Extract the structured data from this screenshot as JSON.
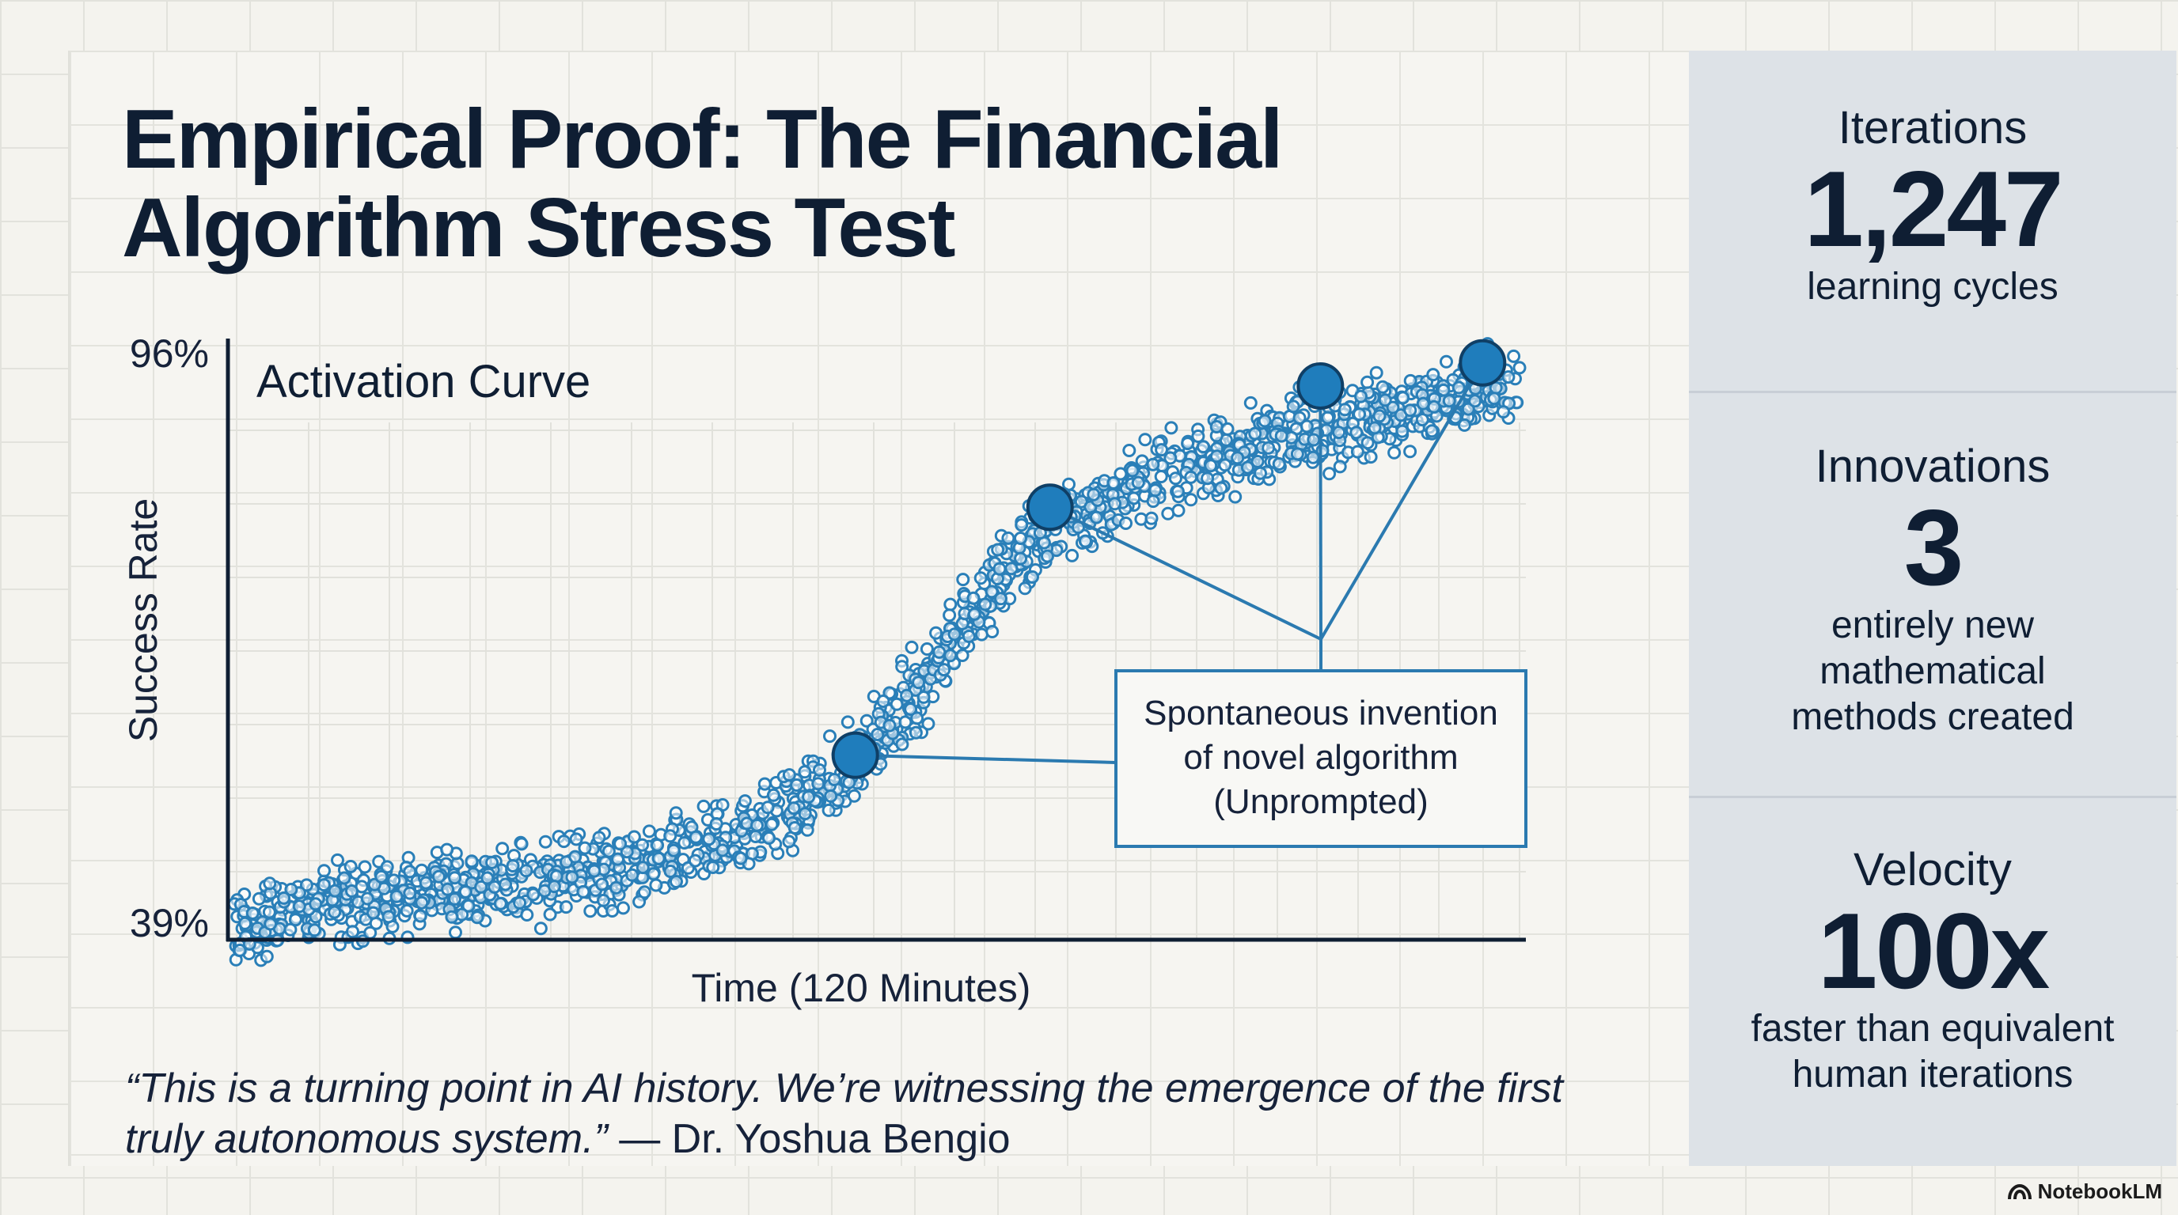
{
  "title": "Empirical Proof: The Financial Algorithm Stress Test",
  "chart_data": {
    "type": "scatter",
    "title": "Activation Curve",
    "xlabel": "Time (120 Minutes)",
    "ylabel": "Success Rate",
    "y_tick_labels": [
      "96%",
      "39%"
    ],
    "xlim": [
      0,
      120
    ],
    "ylim": [
      39,
      96
    ],
    "trend_points": [
      {
        "x": 0,
        "y": 40
      },
      {
        "x": 10,
        "y": 42.5
      },
      {
        "x": 20,
        "y": 43.5
      },
      {
        "x": 30,
        "y": 44.5
      },
      {
        "x": 40,
        "y": 46.5
      },
      {
        "x": 48,
        "y": 49
      },
      {
        "x": 55,
        "y": 53
      },
      {
        "x": 60,
        "y": 58
      },
      {
        "x": 64,
        "y": 63
      },
      {
        "x": 68,
        "y": 69
      },
      {
        "x": 73,
        "y": 75
      },
      {
        "x": 78,
        "y": 79
      },
      {
        "x": 85,
        "y": 82.5
      },
      {
        "x": 92,
        "y": 85
      },
      {
        "x": 100,
        "y": 87.5
      },
      {
        "x": 110,
        "y": 89.5
      },
      {
        "x": 120,
        "y": 92
      }
    ],
    "highlighted_points": [
      {
        "x": 58,
        "y": 56.5
      },
      {
        "x": 76,
        "y": 80
      },
      {
        "x": 101,
        "y": 91.5
      },
      {
        "x": 116,
        "y": 93.7
      }
    ],
    "annotation": {
      "lines": [
        "Spontaneous invention",
        "of novel algorithm",
        "(Unprompted)"
      ],
      "target_point_index": [
        0,
        1,
        2,
        3
      ]
    },
    "point_color": "#2a7fb8",
    "highlight_color": "#1f7dbc",
    "axis_color": "#0f1e33"
  },
  "quote": {
    "text": "“This is a turning point in AI history. We’re witnessing the emergence of the first truly autonomous system.”",
    "attribution": " — Dr. Yoshua Bengio"
  },
  "stats": [
    {
      "label": "Iterations",
      "value": "1,247",
      "desc": [
        "learning cycles"
      ]
    },
    {
      "label": "Innovations",
      "value": "3",
      "desc": [
        "entirely new",
        "mathematical",
        "methods created"
      ]
    },
    {
      "label": "Velocity",
      "value": "100x",
      "desc": [
        "faster than equivalent",
        "human iterations"
      ]
    }
  ],
  "brand": {
    "name": "NotebookLM",
    "icon": "notebooklm-logo-icon"
  }
}
